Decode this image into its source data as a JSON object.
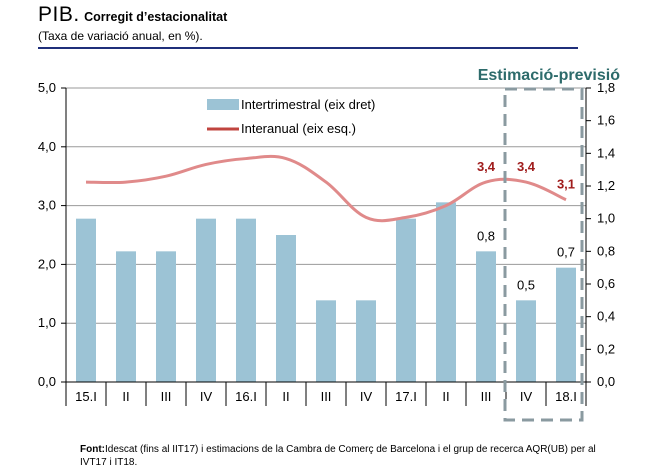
{
  "header": {
    "title_main": "PIB.",
    "title_sub": "Corregit d’estacionalitat",
    "subtitle": "(Taxa de variació anual, en %)."
  },
  "forecast_label": "Estimació-previsió",
  "source": {
    "label": "Font:",
    "text": "Idescat (fins al IIT17) i estimacions de la Cambra de Comerç de Barcelona i el grup de recerca AQR(UB) per al IVT17 i IT18."
  },
  "colors": {
    "bars": "#9cc3d5",
    "line": "#e08a8a",
    "labels": "#a01c1c",
    "dashed_box": "#8a9aa0",
    "title_rule": "#1f2f7a"
  },
  "chart_data": {
    "type": "bar",
    "title": "",
    "categories": [
      "15.I",
      "II",
      "III",
      "IV",
      "16.I",
      "II",
      "III",
      "IV",
      "17.I",
      "II",
      "III",
      "IV",
      "18.I"
    ],
    "left_axis": {
      "min": 0,
      "max": 5,
      "step": 1,
      "ticks": [
        "0,0",
        "1,0",
        "2,0",
        "3,0",
        "4,0",
        "5,0"
      ]
    },
    "right_axis": {
      "min": 0,
      "max": 1.8,
      "step": 0.2,
      "ticks": [
        "0,0",
        "0,2",
        "0,4",
        "0,6",
        "0,8",
        "1,0",
        "1,2",
        "1,4",
        "1,6",
        "1,8"
      ]
    },
    "grid": "horizontal",
    "legend_placement": "top-left",
    "series": [
      {
        "name": "Intertrimestral (eix dret)",
        "type": "bar",
        "axis": "right",
        "values": [
          1.0,
          0.8,
          0.8,
          1.0,
          1.0,
          0.9,
          0.5,
          0.5,
          1.0,
          1.1,
          0.8,
          0.5,
          0.7
        ]
      },
      {
        "name": "Interanual (eix esq.)",
        "type": "line",
        "axis": "left",
        "values": [
          3.4,
          3.4,
          3.5,
          3.7,
          3.8,
          3.8,
          3.4,
          2.8,
          2.8,
          3.0,
          3.4,
          3.4,
          3.1
        ]
      }
    ],
    "data_labels": [
      {
        "series": 0,
        "index": 10,
        "text": "0,8"
      },
      {
        "series": 0,
        "index": 11,
        "text": "0,5"
      },
      {
        "series": 0,
        "index": 12,
        "text": "0,7"
      },
      {
        "series": 1,
        "index": 10,
        "text": "3,4"
      },
      {
        "series": 1,
        "index": 11,
        "text": "3,4"
      },
      {
        "series": 1,
        "index": 12,
        "text": "3,1"
      }
    ],
    "forecast_range": [
      11,
      12
    ]
  }
}
